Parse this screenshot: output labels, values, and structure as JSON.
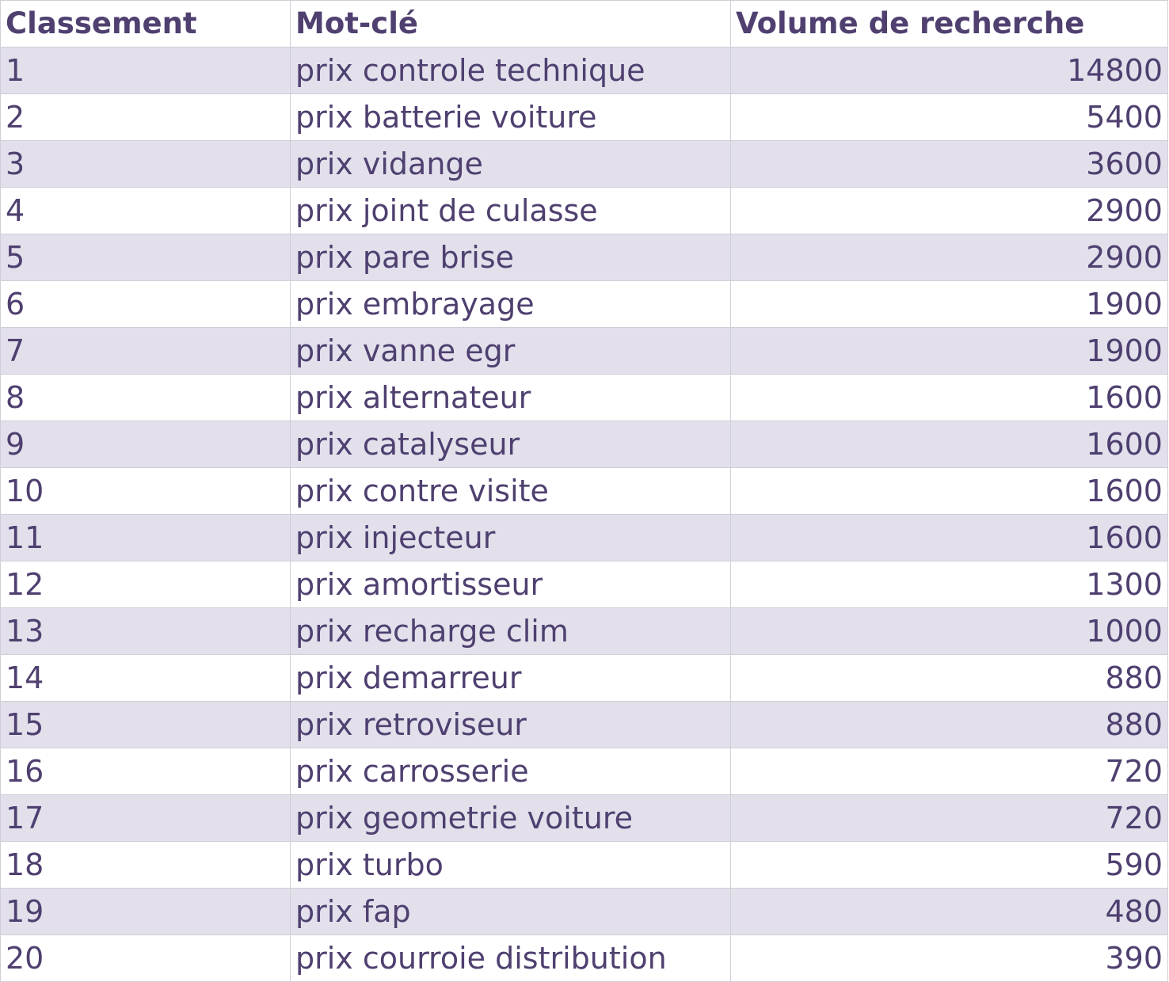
{
  "table": {
    "headers": [
      "Classement",
      "Mot-clé",
      "Volume de recherche"
    ],
    "rows": [
      [
        1,
        "prix controle technique",
        14800
      ],
      [
        2,
        "prix batterie voiture",
        5400
      ],
      [
        3,
        "prix vidange",
        3600
      ],
      [
        4,
        "prix joint de culasse",
        2900
      ],
      [
        5,
        "prix pare brise",
        2900
      ],
      [
        6,
        "prix embrayage",
        1900
      ],
      [
        7,
        "prix vanne egr",
        1900
      ],
      [
        8,
        "prix alternateur",
        1600
      ],
      [
        9,
        "prix catalyseur",
        1600
      ],
      [
        10,
        "prix contre visite",
        1600
      ],
      [
        11,
        "prix injecteur",
        1600
      ],
      [
        12,
        "prix amortisseur",
        1300
      ],
      [
        13,
        "prix recharge clim",
        1000
      ],
      [
        14,
        "prix demarreur",
        880
      ],
      [
        15,
        "prix retroviseur",
        880
      ],
      [
        16,
        "prix carrosserie",
        720
      ],
      [
        17,
        "prix geometrie voiture",
        720
      ],
      [
        18,
        "prix turbo",
        590
      ],
      [
        19,
        "prix fap",
        480
      ],
      [
        20,
        "prix courroie distribution",
        390
      ]
    ]
  }
}
